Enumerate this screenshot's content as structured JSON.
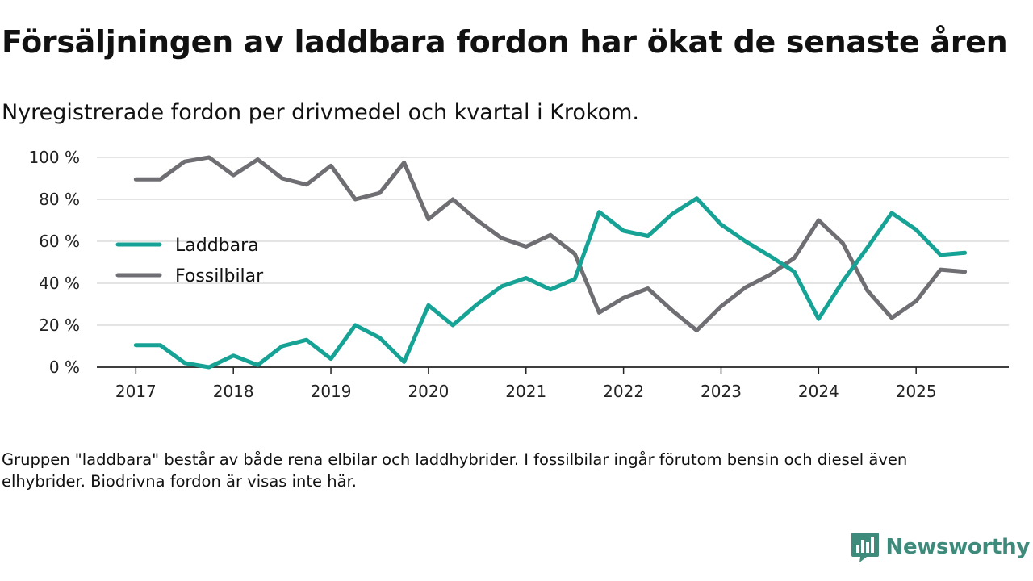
{
  "title": "Försäljningen av laddbara fordon har ökat de senaste åren",
  "subtitle": "Nyregistrerade fordon per drivmedel och kvartal i Krokom.",
  "note": "Gruppen \"laddbara\" består av både rena elbilar och laddhybrider. I fossilbilar ingår förutom bensin och diesel även elhybrider. Biodrivna fordon är visas inte här.",
  "brand": {
    "name": "Newsworthy",
    "icon": "newsworthy-logo-icon",
    "color": "#3e8b7c"
  },
  "chart_data": {
    "type": "line",
    "title": "Försäljningen av laddbara fordon har ökat de senaste åren",
    "xlabel": "",
    "ylabel": "",
    "ylim": [
      0,
      100
    ],
    "xlim": [
      2016.6,
      2025.95
    ],
    "yticks": [
      0,
      20,
      40,
      60,
      80,
      100
    ],
    "ytick_labels": [
      "0 %",
      "20 %",
      "40 %",
      "60 %",
      "80 %",
      "100 %"
    ],
    "xticks": [
      2017,
      2018,
      2019,
      2020,
      2021,
      2022,
      2023,
      2024,
      2025
    ],
    "xtick_labels": [
      "2017",
      "2018",
      "2019",
      "2020",
      "2021",
      "2022",
      "2023",
      "2024",
      "2025"
    ],
    "grid": true,
    "legend_position": "left",
    "x": [
      2017,
      2017.25,
      2017.5,
      2017.75,
      2018,
      2018.25,
      2018.5,
      2018.75,
      2019,
      2019.25,
      2019.5,
      2019.75,
      2020,
      2020.25,
      2020.5,
      2020.75,
      2021,
      2021.25,
      2021.5,
      2021.75,
      2022,
      2022.25,
      2022.5,
      2022.75,
      2023,
      2023.25,
      2023.5,
      2023.75,
      2024,
      2024.25,
      2024.5,
      2024.75,
      2025,
      2025.25,
      2025.5
    ],
    "series": [
      {
        "name": "Laddbara",
        "color": "#16a396",
        "values": [
          10.5,
          10.5,
          2,
          0,
          5.5,
          1,
          10,
          13,
          4,
          20,
          14,
          2.5,
          29.5,
          20,
          30,
          38.5,
          42.5,
          37,
          42,
          74,
          65,
          62.5,
          73,
          80.5,
          68,
          60,
          53,
          45.5,
          23,
          41,
          57,
          73.5,
          65.5,
          53.5,
          54.5
        ]
      },
      {
        "name": "Fossilbilar",
        "color": "#6e6e73",
        "values": [
          89.5,
          89.5,
          98,
          100,
          91.5,
          99,
          90,
          87,
          96,
          80,
          83,
          97.5,
          70.5,
          80,
          70,
          61.5,
          57.5,
          63,
          54,
          26,
          33,
          37.5,
          27,
          17.5,
          29,
          38,
          44,
          52,
          70,
          59,
          36.5,
          23.5,
          31.5,
          46.5,
          45.5
        ]
      }
    ]
  }
}
